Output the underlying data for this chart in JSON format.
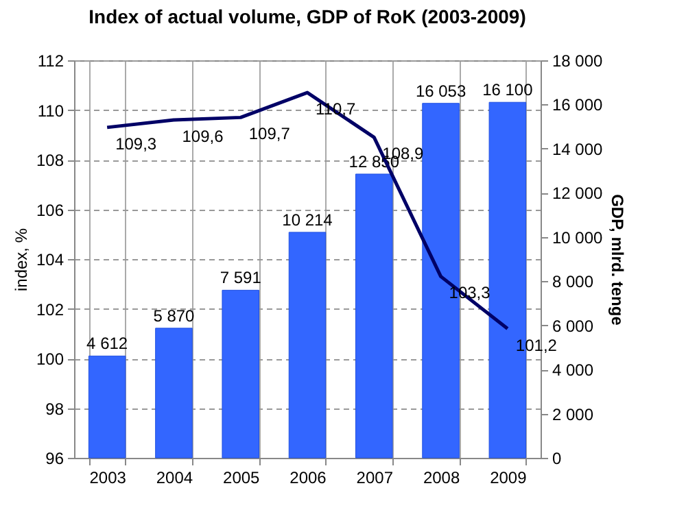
{
  "chart_data": {
    "type": "bar",
    "title": "Index of actual volume, GDP of RoK (2003-2009)",
    "categories": [
      "2003",
      "2004",
      "2005",
      "2006",
      "2007",
      "2008",
      "2009"
    ],
    "ylabel": "index, %",
    "y2label": "GDP, mlrd. tenge",
    "ylim": [
      96,
      112
    ],
    "yticks": [
      96,
      98,
      100,
      102,
      104,
      106,
      108,
      110,
      112
    ],
    "y2lim": [
      0,
      18000
    ],
    "y2ticks": [
      0,
      {
        "value": 2000,
        "label": "2 000"
      },
      {
        "value": 4000,
        "label": "4 000"
      },
      {
        "value": 6000,
        "label": "6 000"
      },
      {
        "value": 8000,
        "label": "8 000"
      },
      {
        "value": 10000,
        "label": "10 000"
      },
      {
        "value": 12000,
        "label": "12 000"
      },
      {
        "value": 14000,
        "label": "14 000"
      },
      {
        "value": 16000,
        "label": "16 000"
      },
      {
        "value": 18000,
        "label": "18 000"
      }
    ],
    "grid": true,
    "series": [
      {
        "type": "bar",
        "axis": "y2",
        "color": "#3366ff",
        "values": [
          4612,
          5870,
          7591,
          10214,
          12850,
          16053,
          16100
        ],
        "value_labels": [
          "4 612",
          "5 870",
          "7 591",
          "10 214",
          "12 850",
          "16 053",
          "16 100"
        ]
      },
      {
        "type": "line",
        "axis": "y",
        "color": "#000066",
        "values": [
          109.3,
          109.6,
          109.7,
          110.7,
          108.9,
          103.3,
          101.2
        ],
        "value_labels": [
          "109,3",
          "109,6",
          "109,7",
          "110,7",
          "108,9",
          "103,3",
          "101,2"
        ]
      }
    ]
  }
}
